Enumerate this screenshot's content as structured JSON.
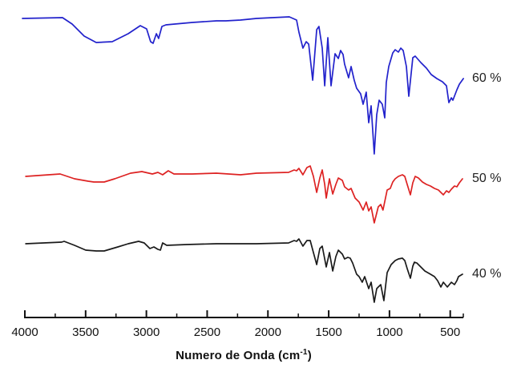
{
  "figure": {
    "xlabel_parts": {
      "pre": "Numero de Onda (cm",
      "sup": "-1",
      "post": ")"
    }
  },
  "chart_data": {
    "type": "line",
    "title": "",
    "xlabel": "Numero de Onda (cm⁻¹)",
    "ylabel": "",
    "grid": false,
    "legend_position": "right of each curve end",
    "x_axis": {
      "reversed": true,
      "range": [
        4000,
        392
      ],
      "ticks": [
        4000,
        3500,
        3000,
        2500,
        2000,
        1500,
        1000,
        500
      ],
      "minor_ticks": [
        3750,
        3250,
        2750,
        2250,
        1750,
        1250,
        750
      ]
    },
    "y_axis": {
      "visible": false,
      "units": "arbitrary units (transmittance, traces vertically offset)"
    },
    "axis_color": "#111111",
    "series": [
      {
        "name": "60 %",
        "color": "#2222cc",
        "points": [
          [
            4020,
            373
          ],
          [
            3690,
            374
          ],
          [
            3611,
            366
          ],
          [
            3512,
            351
          ],
          [
            3413,
            343
          ],
          [
            3281,
            344
          ],
          [
            3149,
            354
          ],
          [
            3050,
            364
          ],
          [
            2998,
            360
          ],
          [
            2965,
            344
          ],
          [
            2945,
            342
          ],
          [
            2918,
            354
          ],
          [
            2899,
            348
          ],
          [
            2872,
            363
          ],
          [
            2839,
            365
          ],
          [
            2622,
            368
          ],
          [
            2424,
            370
          ],
          [
            2345,
            370
          ],
          [
            2226,
            371
          ],
          [
            2094,
            373
          ],
          [
            1962,
            374
          ],
          [
            1824,
            375
          ],
          [
            1764,
            371
          ],
          [
            1745,
            356
          ],
          [
            1712,
            336
          ],
          [
            1685,
            344
          ],
          [
            1665,
            341
          ],
          [
            1632,
            296
          ],
          [
            1599,
            359
          ],
          [
            1580,
            363
          ],
          [
            1553,
            336
          ],
          [
            1533,
            289
          ],
          [
            1507,
            349
          ],
          [
            1481,
            289
          ],
          [
            1448,
            329
          ],
          [
            1421,
            323
          ],
          [
            1402,
            333
          ],
          [
            1382,
            328
          ],
          [
            1369,
            316
          ],
          [
            1336,
            299
          ],
          [
            1316,
            313
          ],
          [
            1290,
            296
          ],
          [
            1270,
            286
          ],
          [
            1237,
            279
          ],
          [
            1217,
            266
          ],
          [
            1191,
            281
          ],
          [
            1171,
            243
          ],
          [
            1151,
            264
          ],
          [
            1125,
            204
          ],
          [
            1105,
            253
          ],
          [
            1085,
            271
          ],
          [
            1059,
            266
          ],
          [
            1039,
            249
          ],
          [
            1026,
            293
          ],
          [
            1006,
            313
          ],
          [
            973,
            330
          ],
          [
            953,
            334
          ],
          [
            927,
            331
          ],
          [
            907,
            336
          ],
          [
            887,
            333
          ],
          [
            861,
            313
          ],
          [
            841,
            276
          ],
          [
            808,
            324
          ],
          [
            788,
            326
          ],
          [
            742,
            318
          ],
          [
            696,
            311
          ],
          [
            656,
            303
          ],
          [
            610,
            298
          ],
          [
            564,
            294
          ],
          [
            531,
            289
          ],
          [
            511,
            268
          ],
          [
            491,
            274
          ],
          [
            478,
            271
          ],
          [
            445,
            284
          ],
          [
            425,
            291
          ],
          [
            392,
            298
          ]
        ]
      },
      {
        "name": "50 %",
        "color": "#dd2222",
        "points": [
          [
            3993,
            176
          ],
          [
            3710,
            179
          ],
          [
            3591,
            173
          ],
          [
            3479,
            170
          ],
          [
            3433,
            169
          ],
          [
            3347,
            169
          ],
          [
            3261,
            173
          ],
          [
            3130,
            180
          ],
          [
            3037,
            182
          ],
          [
            2951,
            179
          ],
          [
            2905,
            181
          ],
          [
            2866,
            178
          ],
          [
            2820,
            183
          ],
          [
            2773,
            179
          ],
          [
            2622,
            179
          ],
          [
            2424,
            180
          ],
          [
            2226,
            178
          ],
          [
            2094,
            180
          ],
          [
            1830,
            181
          ],
          [
            1784,
            184
          ],
          [
            1764,
            183
          ],
          [
            1745,
            186
          ],
          [
            1712,
            178
          ],
          [
            1679,
            187
          ],
          [
            1652,
            189
          ],
          [
            1626,
            176
          ],
          [
            1599,
            156
          ],
          [
            1573,
            174
          ],
          [
            1553,
            184
          ],
          [
            1533,
            166
          ],
          [
            1520,
            149
          ],
          [
            1494,
            173
          ],
          [
            1467,
            154
          ],
          [
            1441,
            166
          ],
          [
            1421,
            174
          ],
          [
            1388,
            171
          ],
          [
            1369,
            163
          ],
          [
            1336,
            159
          ],
          [
            1316,
            161
          ],
          [
            1283,
            149
          ],
          [
            1250,
            144
          ],
          [
            1217,
            134
          ],
          [
            1191,
            144
          ],
          [
            1171,
            133
          ],
          [
            1151,
            138
          ],
          [
            1125,
            118
          ],
          [
            1092,
            138
          ],
          [
            1072,
            141
          ],
          [
            1053,
            134
          ],
          [
            1019,
            159
          ],
          [
            993,
            161
          ],
          [
            973,
            169
          ],
          [
            953,
            173
          ],
          [
            927,
            176
          ],
          [
            894,
            178
          ],
          [
            874,
            176
          ],
          [
            854,
            166
          ],
          [
            828,
            153
          ],
          [
            808,
            168
          ],
          [
            788,
            176
          ],
          [
            762,
            174
          ],
          [
            729,
            169
          ],
          [
            696,
            166
          ],
          [
            663,
            164
          ],
          [
            630,
            161
          ],
          [
            597,
            159
          ],
          [
            577,
            156
          ],
          [
            557,
            153
          ],
          [
            531,
            158
          ],
          [
            511,
            156
          ],
          [
            491,
            160
          ],
          [
            465,
            164
          ],
          [
            445,
            163
          ],
          [
            425,
            168
          ],
          [
            399,
            173
          ]
        ]
      },
      {
        "name": "40 %",
        "color": "#1a1a1a",
        "points": [
          [
            3993,
            92
          ],
          [
            3697,
            94
          ],
          [
            3677,
            95
          ],
          [
            3591,
            90
          ],
          [
            3499,
            84
          ],
          [
            3413,
            83
          ],
          [
            3347,
            83
          ],
          [
            3235,
            88
          ],
          [
            3149,
            92
          ],
          [
            3064,
            95
          ],
          [
            3018,
            93
          ],
          [
            2971,
            86
          ],
          [
            2938,
            88
          ],
          [
            2905,
            85
          ],
          [
            2885,
            84
          ],
          [
            2866,
            93
          ],
          [
            2833,
            90
          ],
          [
            2668,
            91
          ],
          [
            2424,
            92
          ],
          [
            2226,
            92
          ],
          [
            2094,
            92
          ],
          [
            1830,
            93
          ],
          [
            1784,
            96
          ],
          [
            1764,
            95
          ],
          [
            1745,
            98
          ],
          [
            1712,
            89
          ],
          [
            1679,
            96
          ],
          [
            1652,
            96
          ],
          [
            1626,
            81
          ],
          [
            1599,
            66
          ],
          [
            1573,
            86
          ],
          [
            1553,
            89
          ],
          [
            1533,
            73
          ],
          [
            1520,
            63
          ],
          [
            1494,
            81
          ],
          [
            1467,
            58
          ],
          [
            1441,
            76
          ],
          [
            1421,
            84
          ],
          [
            1388,
            79
          ],
          [
            1369,
            73
          ],
          [
            1343,
            75
          ],
          [
            1323,
            74
          ],
          [
            1303,
            68
          ],
          [
            1270,
            54
          ],
          [
            1250,
            51
          ],
          [
            1224,
            44
          ],
          [
            1204,
            51
          ],
          [
            1171,
            36
          ],
          [
            1151,
            44
          ],
          [
            1125,
            19
          ],
          [
            1105,
            36
          ],
          [
            1092,
            38
          ],
          [
            1072,
            41
          ],
          [
            1046,
            21
          ],
          [
            1019,
            56
          ],
          [
            986,
            66
          ],
          [
            953,
            71
          ],
          [
            927,
            73
          ],
          [
            894,
            74
          ],
          [
            874,
            71
          ],
          [
            854,
            61
          ],
          [
            828,
            49
          ],
          [
            808,
            64
          ],
          [
            795,
            69
          ],
          [
            775,
            68
          ],
          [
            742,
            63
          ],
          [
            709,
            58
          ],
          [
            663,
            54
          ],
          [
            630,
            51
          ],
          [
            604,
            46
          ],
          [
            577,
            38
          ],
          [
            557,
            44
          ],
          [
            524,
            38
          ],
          [
            491,
            44
          ],
          [
            465,
            41
          ],
          [
            445,
            46
          ],
          [
            432,
            51
          ],
          [
            399,
            54
          ]
        ]
      }
    ]
  }
}
